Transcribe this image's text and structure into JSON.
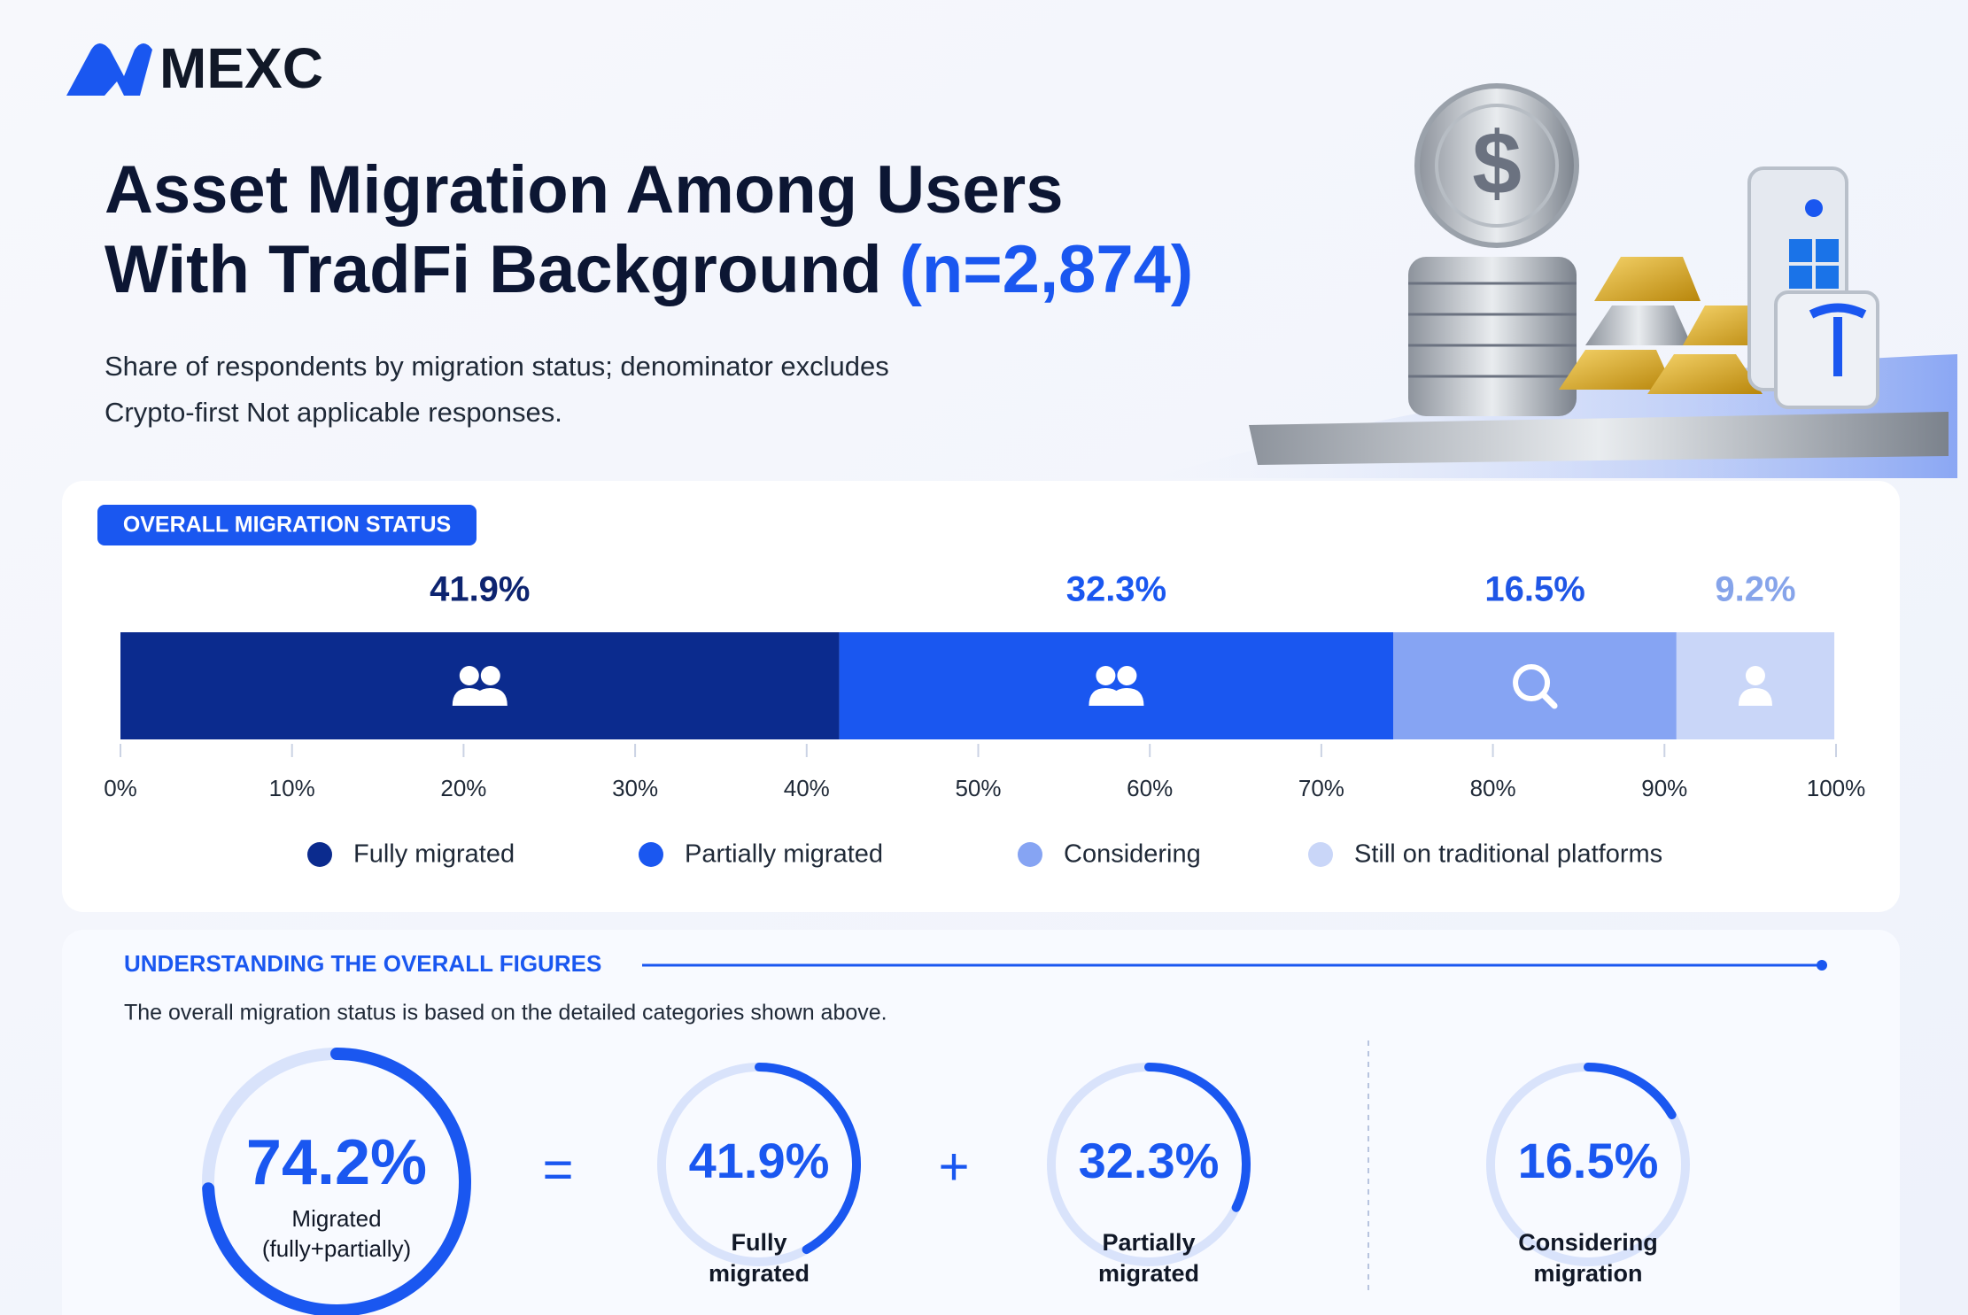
{
  "header": {
    "brand": "MEXC",
    "title": [
      "Asset Migration Among Users",
      "With TradFi Background"
    ],
    "sample": "(n=2,874)",
    "subtitle": [
      "Share of respondents by migration status; denominator excludes",
      "Crypto-first Not applicable responses."
    ]
  },
  "chart_data": {
    "type": "stacked-bar",
    "title": "OVERALL MIGRATION STATUS",
    "series": [
      {
        "name": "Fully migrated",
        "color": "#0b2b8e",
        "label_color": "#0d2470",
        "values": [
          41.9
        ],
        "value_labels": [
          "41.9%"
        ]
      },
      {
        "name": "Partially migrated",
        "color": "#1a57f0",
        "label_color": "#1a57f0",
        "values": [
          32.3
        ],
        "value_labels": [
          "32.3%"
        ]
      },
      {
        "name": "Considering",
        "color": "#86a4f3",
        "label_color": "#1f56e6",
        "values": [
          16.5
        ],
        "value_labels": [
          "16.5%"
        ]
      },
      {
        "name": "Still on traditional platforms",
        "color": "#c9d6f8",
        "label_color": "#86a4ea",
        "values": [
          9.2
        ],
        "value_labels": [
          "9.2%"
        ]
      }
    ],
    "xlim": [
      0,
      100
    ],
    "xticks": [
      {
        "value": 0,
        "label": "0%"
      },
      {
        "value": 10,
        "label": "10%"
      },
      {
        "value": 20,
        "label": "20%"
      },
      {
        "value": 30,
        "label": "30%"
      },
      {
        "value": 40,
        "label": "40%"
      },
      {
        "value": 50,
        "label": "50%"
      },
      {
        "value": 60,
        "label": "60%"
      },
      {
        "value": 70,
        "label": "70%"
      },
      {
        "value": 80,
        "label": "80%"
      },
      {
        "value": 90,
        "label": "90%"
      },
      {
        "value": 100,
        "label": "100%"
      }
    ],
    "legend": "bottom"
  },
  "summary": {
    "title": "UNDERSTANDING THE OVERALL FIGURES",
    "description": "The overall migration status is based on the detailed categories shown above.",
    "equals": "=",
    "plus": "+",
    "rings": [
      {
        "value": 74.2,
        "label": "74.2%",
        "caption": [
          "Migrated",
          "(fully+partially)"
        ]
      },
      {
        "value": 41.9,
        "label": "41.9%",
        "caption": [
          "Fully",
          "migrated"
        ]
      },
      {
        "value": 32.3,
        "label": "32.3%",
        "caption": [
          "Partially",
          "migrated"
        ]
      },
      {
        "value": 16.5,
        "label": "16.5%",
        "caption": [
          "Considering",
          "migration"
        ]
      }
    ]
  }
}
